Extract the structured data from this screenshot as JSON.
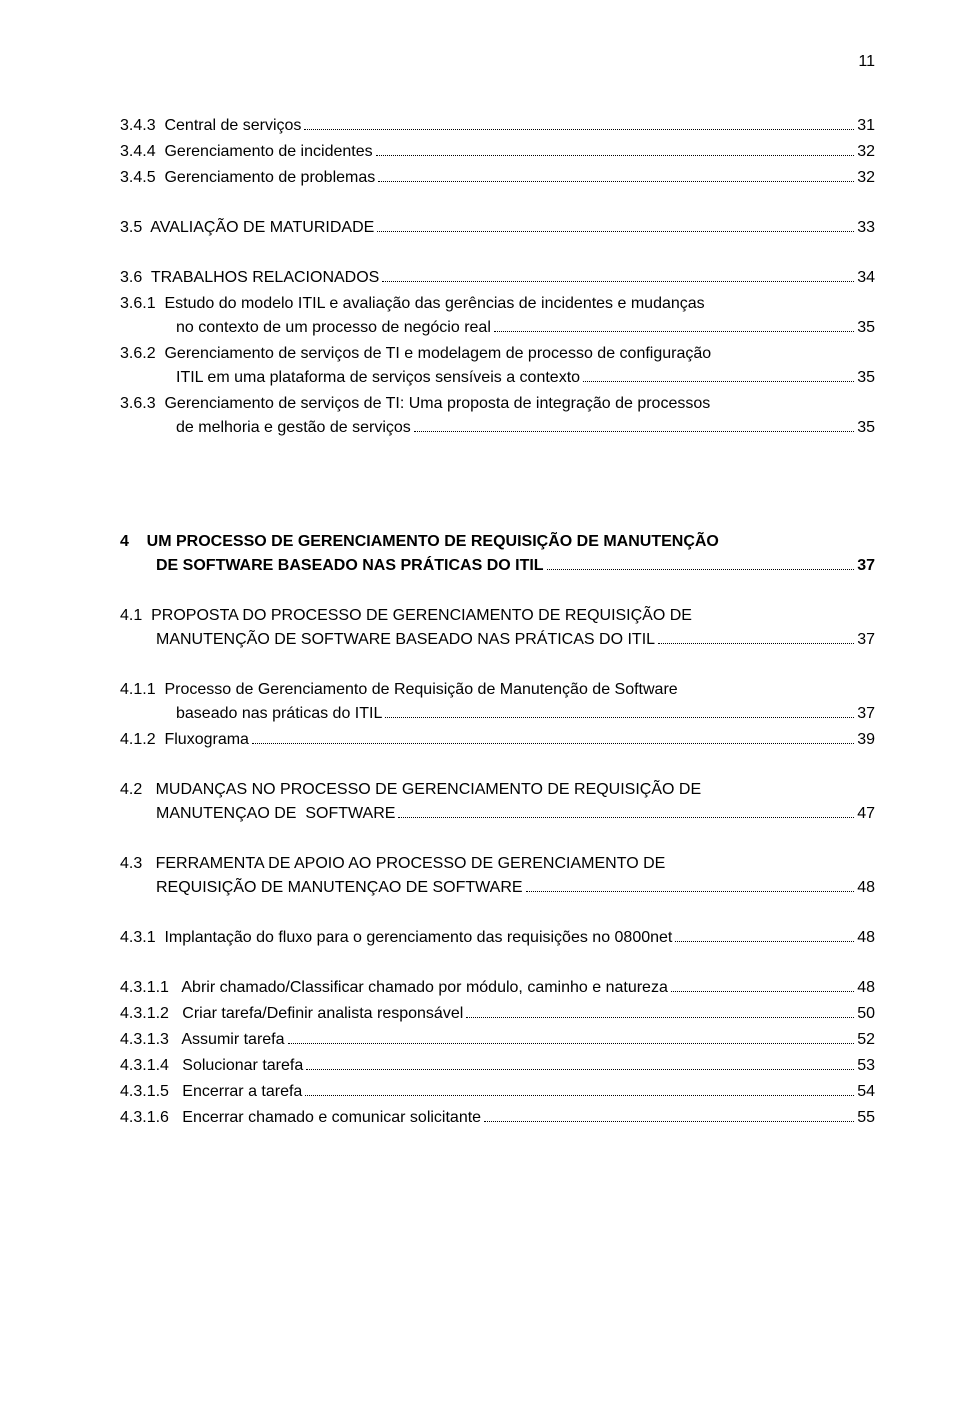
{
  "page_number": "11",
  "lines": [
    {
      "type": "item",
      "indent": "indent-1",
      "text": "3.4.3  Central de serviços",
      "page": "31"
    },
    {
      "type": "item",
      "indent": "indent-1",
      "text": "3.4.4  Gerenciamento de incidentes",
      "page": "32"
    },
    {
      "type": "item",
      "indent": "indent-1",
      "text": "3.4.5  Gerenciamento de problemas",
      "page": "32"
    },
    {
      "type": "gap",
      "size": "section-gap"
    },
    {
      "type": "item",
      "indent": "indent-1",
      "text": "3.5  AVALIAÇÃO DE MATURIDADE",
      "page": "33"
    },
    {
      "type": "gap",
      "size": "section-gap"
    },
    {
      "type": "item",
      "indent": "indent-1",
      "text": "3.6  TRABALHOS RELACIONADOS",
      "page": "34"
    },
    {
      "type": "wrap",
      "indent": "indent-1",
      "first": "3.6.1  Estudo do modelo ITIL e avaliação das gerências de incidentes e mudanças",
      "cont": "no contexto de um processo de negócio real",
      "page": "35"
    },
    {
      "type": "wrap",
      "indent": "indent-1",
      "first": "3.6.2  Gerenciamento de serviços de TI e modelagem de processo de configuração",
      "cont": "ITIL em uma plataforma de serviços sensíveis a contexto",
      "page": "35"
    },
    {
      "type": "wrap",
      "indent": "indent-1",
      "first": "3.6.3  Gerenciamento de serviços de TI: Uma proposta de integração de processos",
      "cont": "de melhoria e gestão de serviços",
      "page": "35"
    },
    {
      "type": "gap",
      "size": "section-gap-lg"
    },
    {
      "type": "gap",
      "size": "section-gap-lg"
    },
    {
      "type": "wrap",
      "indent": "indent-1",
      "bold": true,
      "first": "4    UM PROCESSO DE GERENCIAMENTO DE REQUISIÇÃO DE MANUTENÇÃO",
      "cont_indent": "36px",
      "cont": "DE SOFTWARE BASEADO NAS PRÁTICAS DO ITIL",
      "page": "37"
    },
    {
      "type": "gap",
      "size": "section-gap"
    },
    {
      "type": "wrap",
      "indent": "indent-1",
      "first": "4.1  PROPOSTA DO PROCESSO DE GERENCIAMENTO DE REQUISIÇÃO DE",
      "cont_indent": "36px",
      "cont": "MANUTENÇÃO DE SOFTWARE BASEADO NAS PRÁTICAS DO ITIL",
      "page": "37"
    },
    {
      "type": "gap",
      "size": "section-gap"
    },
    {
      "type": "wrap",
      "indent": "indent-1",
      "first": "4.1.1  Processo de Gerenciamento de Requisição de Manutenção de Software",
      "cont": "baseado nas práticas do ITIL",
      "page": "37"
    },
    {
      "type": "item",
      "indent": "indent-1",
      "text": "4.1.2  Fluxograma",
      "page": "39"
    },
    {
      "type": "gap",
      "size": "section-gap"
    },
    {
      "type": "wrap",
      "indent": "indent-1",
      "first": "4.2   MUDANÇAS NO PROCESSO DE GERENCIAMENTO DE REQUISIÇÃO DE",
      "cont_indent": "36px",
      "cont": "MANUTENÇAO DE  SOFTWARE",
      "page": "47"
    },
    {
      "type": "gap",
      "size": "section-gap"
    },
    {
      "type": "wrap",
      "indent": "indent-1",
      "first": "4.3   FERRAMENTA DE APOIO AO PROCESSO DE GERENCIAMENTO DE",
      "cont_indent": "36px",
      "cont": "REQUISIÇÃO DE MANUTENÇAO DE SOFTWARE",
      "page": "48"
    },
    {
      "type": "gap",
      "size": "section-gap"
    },
    {
      "type": "item",
      "indent": "indent-1",
      "text": "4.3.1  Implantação do fluxo para o gerenciamento das requisições no 0800net",
      "page": "48"
    },
    {
      "type": "gap",
      "size": "section-gap"
    },
    {
      "type": "item",
      "indent": "indent-1",
      "text": "4.3.1.1   Abrir chamado/Classificar chamado por módulo, caminho e natureza",
      "page": "48"
    },
    {
      "type": "item",
      "indent": "indent-1",
      "text": "4.3.1.2   Criar tarefa/Definir analista responsável",
      "page": "50"
    },
    {
      "type": "item",
      "indent": "indent-1",
      "text": "4.3.1.3   Assumir tarefa",
      "page": "52"
    },
    {
      "type": "item",
      "indent": "indent-1",
      "text": "4.3.1.4   Solucionar tarefa",
      "page": "53"
    },
    {
      "type": "item",
      "indent": "indent-1",
      "text": "4.3.1.5   Encerrar a tarefa",
      "page": "54"
    },
    {
      "type": "item",
      "indent": "indent-1",
      "text": "4.3.1.6   Encerrar chamado e comunicar solicitante",
      "page": "55"
    }
  ]
}
